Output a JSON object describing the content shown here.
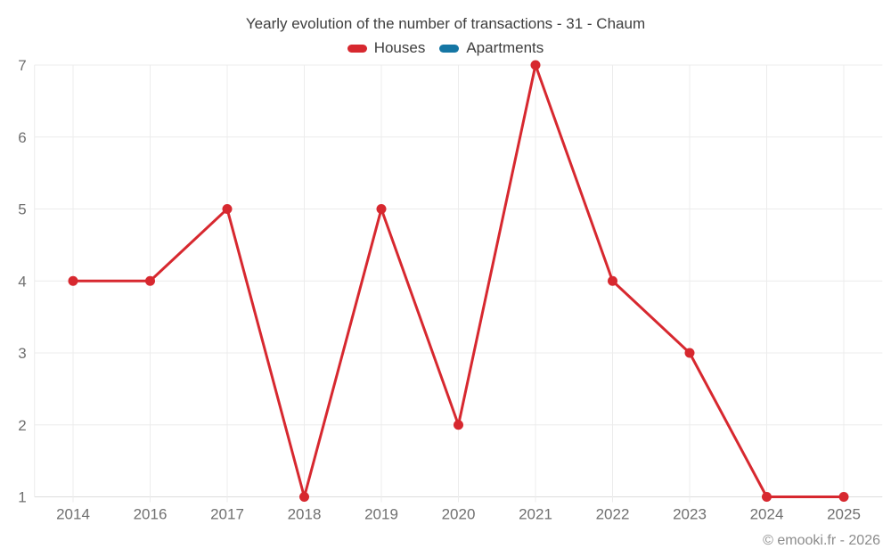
{
  "chart_data": {
    "type": "line",
    "title": "Yearly evolution of the number of transactions - 31 - Chaum",
    "categories": [
      "2014",
      "2016",
      "2017",
      "2018",
      "2019",
      "2020",
      "2021",
      "2022",
      "2023",
      "2024",
      "2025"
    ],
    "series": [
      {
        "name": "Houses",
        "color": "#d7282f",
        "values": [
          4,
          4,
          5,
          1,
          5,
          2,
          7,
          4,
          3,
          1,
          1
        ]
      },
      {
        "name": "Apartments",
        "color": "#1576a4",
        "values": []
      }
    ],
    "xlabel": "",
    "ylabel": "",
    "ylim": [
      1,
      7
    ],
    "ytick_step": 1,
    "yticks": [
      1,
      2,
      3,
      4,
      5,
      6,
      7
    ],
    "grid": true,
    "legend_position": "top",
    "credit": "© emooki.fr - 2026"
  }
}
